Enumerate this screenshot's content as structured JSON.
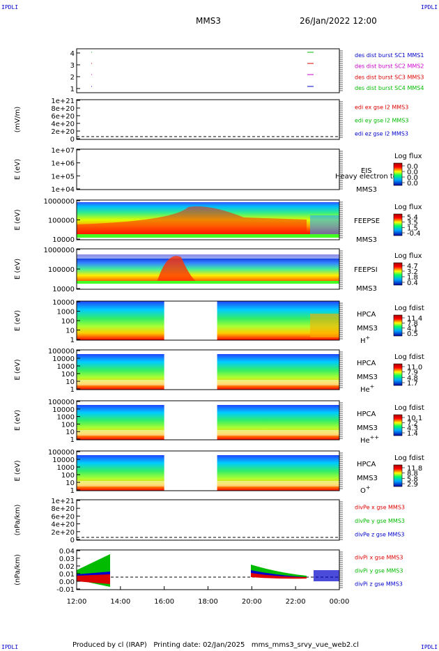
{
  "corners": {
    "tl": "IPDLI",
    "tr": "IPDLI",
    "bl": "IPDLI",
    "br": "IPDLI"
  },
  "header": {
    "spacecraft": "MMS3",
    "datetime": "26/Jan/2022 12:00"
  },
  "footer": {
    "text": "Produced by cl (IRAP)   Printing date: 02/Jan/2025   mms_mms3_srvy_vue_web2.cl"
  },
  "colors": {
    "red": "#dd0000",
    "green": "#00bb00",
    "blue": "#0000cc",
    "magenta": "#cc00cc"
  },
  "chart_data": {
    "type": "heatmap",
    "time_axis": {
      "start": "12:00",
      "end": "00:00",
      "tick_labels": [
        "12:00",
        "14:00",
        "16:00",
        "18:00",
        "20:00",
        "22:00",
        "00:00"
      ]
    },
    "panels": [
      {
        "id": "burst",
        "ylabel": "",
        "yticks": [
          "4",
          "3",
          "2",
          "1"
        ],
        "legend": [
          {
            "text": "des dist burst SC1 MMS1",
            "color": "#0000cc"
          },
          {
            "text": "des dist burst SC2 MMS2",
            "color": "#cc00cc"
          },
          {
            "text": "des dist burst SC3 MMS3",
            "color": "#dd0000"
          },
          {
            "text": "des dist burst SC4 MMS4",
            "color": "#00bb00"
          }
        ]
      },
      {
        "id": "edi",
        "ylabel": "(mV/m)",
        "yticks": [
          "1e+21",
          "8e+20",
          "6e+20",
          "4e+20",
          "2e+20",
          "0"
        ],
        "legend": [
          {
            "text": "edi ex gse l2 MMS3",
            "color": "#dd0000"
          },
          {
            "text": "edi ey gse l2 MMS3",
            "color": "#00bb00"
          },
          {
            "text": "edi ez gse l2 MMS3",
            "color": "#0000cc"
          }
        ]
      },
      {
        "id": "eis",
        "ylabel": "E (eV)",
        "yticks": [
          "1e+07",
          "1e+06",
          "1e+05",
          "1e+04"
        ],
        "labels": [
          "EIS",
          "MMS3"
        ],
        "overlay": "Heavy electron to",
        "cbar": {
          "title": "Log flux",
          "ticks": [
            "0.0",
            "0.0",
            "0.0",
            "0.0"
          ]
        }
      },
      {
        "id": "feepse",
        "ylabel": "E (eV)",
        "yticks": [
          "1000000",
          "100000",
          "10000"
        ],
        "labels": [
          "FEEPSE",
          "MMS3"
        ],
        "cbar": {
          "title": "Log flux",
          "ticks": [
            "5.4",
            "3.5",
            "1.5",
            "-0.4"
          ]
        }
      },
      {
        "id": "feepsi",
        "ylabel": "E (eV)",
        "yticks": [
          "1000000",
          "100000",
          "10000"
        ],
        "labels": [
          "FEEPSI",
          "MMS3"
        ],
        "cbar": {
          "title": "Log flux",
          "ticks": [
            "4.7",
            "3.2",
            "1.8",
            "0.4"
          ]
        }
      },
      {
        "id": "hpca_h",
        "ylabel": "E (eV)",
        "yticks": [
          "10000",
          "1000",
          "100",
          "10",
          "1"
        ],
        "labels": [
          "HPCA",
          "MMS3"
        ],
        "species": "H",
        "sup": "+",
        "cbar": {
          "title": "Log fdist",
          "ticks": [
            "11.4",
            "7.8",
            "4.1",
            "0.5"
          ]
        },
        "gap": [
          "16:00",
          "18:25"
        ]
      },
      {
        "id": "hpca_he",
        "ylabel": "E (eV)",
        "yticks": [
          "100000",
          "10000",
          "1000",
          "100",
          "10",
          "1"
        ],
        "labels": [
          "HPCA",
          "MMS3"
        ],
        "species": "He",
        "sup": "+",
        "cbar": {
          "title": "Log fdist",
          "ticks": [
            "11.0",
            "7.9",
            "4.8",
            "1.7"
          ]
        },
        "gap": [
          "16:00",
          "18:25"
        ]
      },
      {
        "id": "hpca_he2",
        "ylabel": "E (eV)",
        "yticks": [
          "100000",
          "10000",
          "1000",
          "100",
          "10",
          "1"
        ],
        "labels": [
          "HPCA",
          "MMS3"
        ],
        "species": "He",
        "sup": "++",
        "cbar": {
          "title": "Log fdist",
          "ticks": [
            "10.1",
            "7.2",
            "4.3",
            "1.4"
          ]
        },
        "gap": [
          "16:00",
          "18:25"
        ]
      },
      {
        "id": "hpca_o",
        "ylabel": "E (eV)",
        "yticks": [
          "100000",
          "10000",
          "1000",
          "100",
          "10",
          "1"
        ],
        "labels": [
          "HPCA",
          "MMS3"
        ],
        "species": "O",
        "sup": "+",
        "cbar": {
          "title": "Log fdist",
          "ticks": [
            "11.8",
            "8.8",
            "5.8",
            "2.9"
          ]
        },
        "gap": [
          "16:00",
          "18:25"
        ]
      },
      {
        "id": "divpe",
        "ylabel": "(nPa/km)",
        "yticks": [
          "1e+21",
          "8e+20",
          "6e+20",
          "4e+20",
          "2e+20",
          "0"
        ],
        "legend": [
          {
            "text": "divPe x gse MMS3",
            "color": "#dd0000"
          },
          {
            "text": "divPe y gse MMS3",
            "color": "#00bb00"
          },
          {
            "text": "divPe z gse MMS3",
            "color": "#0000cc"
          }
        ]
      },
      {
        "id": "divpi",
        "ylabel": "(nPa/km)",
        "yticks": [
          "0.04",
          "0.03",
          "0.02",
          "0.01",
          "0.00",
          "-0.01"
        ],
        "legend": [
          {
            "text": "divPi x gse MMS3",
            "color": "#dd0000"
          },
          {
            "text": "divPi y gse MMS3",
            "color": "#00bb00"
          },
          {
            "text": "divPi z gse MMS3",
            "color": "#0000cc"
          }
        ]
      }
    ]
  }
}
